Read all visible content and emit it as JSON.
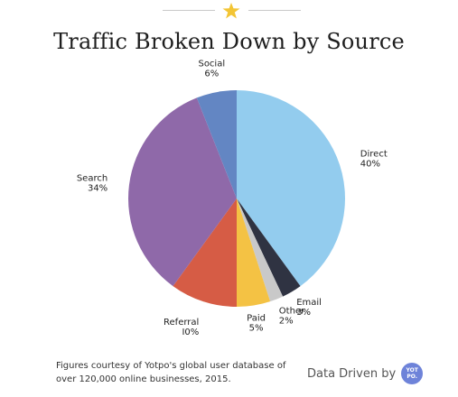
{
  "header": {
    "star_icon": "star-icon",
    "star_color": "#f3c535"
  },
  "chart_data": {
    "type": "pie",
    "title": "Traffic Broken Down by Source",
    "slices": [
      {
        "label": "Direct",
        "value_label": "40%",
        "value": 40,
        "color": "#93ccee"
      },
      {
        "label": "Email",
        "value_label": "3%",
        "value": 3,
        "color": "#2f3342"
      },
      {
        "label": "Other",
        "value_label": "2%",
        "value": 2,
        "color": "#c9c9c9"
      },
      {
        "label": "Paid",
        "value_label": "5%",
        "value": 5,
        "color": "#f4c244"
      },
      {
        "label": "Referral",
        "value_label": "I0%",
        "value": 10,
        "color": "#d65c45"
      },
      {
        "label": "Search",
        "value_label": "34%",
        "value": 34,
        "color": "#8f69a9"
      },
      {
        "label": "Social",
        "value_label": "6%",
        "value": 6,
        "color": "#6386c3"
      }
    ]
  },
  "footer": {
    "note": "Figures courtesy of Yotpo's global user database of over 120,000 online businesses, 2015.",
    "brand_text": "Data Driven by",
    "logo_text": "YOT PO."
  }
}
